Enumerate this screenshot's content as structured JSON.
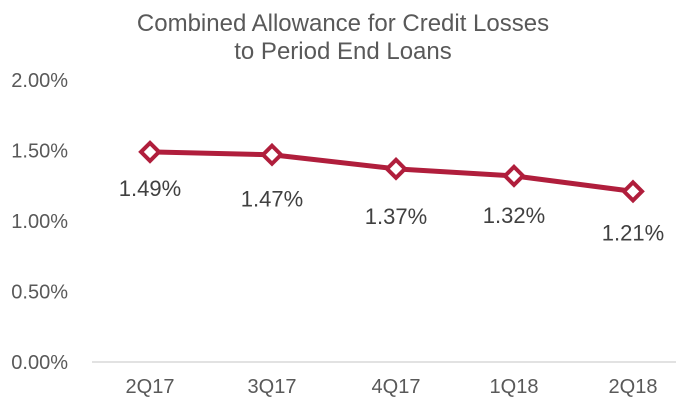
{
  "chart_data": {
    "type": "line",
    "title": [
      "Combined Allowance for Credit Losses",
      "to Period End Loans"
    ],
    "xlabel": "",
    "ylabel": "",
    "categories": [
      "2Q17",
      "3Q17",
      "4Q17",
      "1Q18",
      "2Q18"
    ],
    "series": [
      {
        "values": [
          1.49,
          1.47,
          1.37,
          1.32,
          1.21
        ],
        "data_labels": [
          "1.49%",
          "1.47%",
          "1.37%",
          "1.32%",
          "1.21%"
        ],
        "color": "#B01E3C",
        "marker": "diamond"
      }
    ],
    "ylim": [
      0,
      2
    ],
    "yticks": [
      0,
      0.5,
      1,
      1.5,
      2
    ],
    "ytick_labels": [
      "0.00%",
      "0.50%",
      "1.00%",
      "1.50%",
      "2.00%"
    ],
    "grid": false,
    "legend": "none",
    "axis_color": "#D9D9D9"
  }
}
